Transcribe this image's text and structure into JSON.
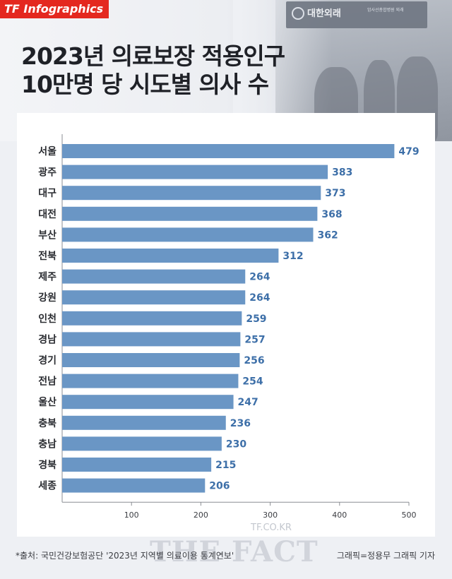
{
  "brand": {
    "badge": "TF Infographics"
  },
  "photo": {
    "sign_text": "대한외래",
    "sign_subtext": "암사선총합병원 외래"
  },
  "title_lines": [
    "2023년 의료보장 적용인구",
    "10만명 당 시도별 의사 수"
  ],
  "chart_data": {
    "type": "bar",
    "orientation": "horizontal",
    "categories": [
      "서울",
      "광주",
      "대구",
      "대전",
      "부산",
      "전북",
      "제주",
      "강원",
      "인천",
      "경남",
      "경기",
      "전남",
      "울산",
      "충북",
      "충남",
      "경북",
      "세종"
    ],
    "values": [
      479,
      383,
      373,
      368,
      362,
      312,
      264,
      264,
      259,
      257,
      256,
      254,
      247,
      236,
      230,
      215,
      206
    ],
    "xlim": [
      0,
      500
    ],
    "xticks": [
      100,
      200,
      300,
      400,
      500
    ],
    "grid": false,
    "title": "",
    "xlabel": "",
    "ylabel": "",
    "bar_color": "#6a96c5",
    "value_label_color": "#3d6fa8"
  },
  "footer": {
    "source": "*출처: 국민건강보험공단 '2023년 지역별 의료이용 통계연보'",
    "credit": "그래픽=정용무 그래픽 기자"
  },
  "watermark": {
    "url": "TF.CO.KR",
    "logo": "THE FACT"
  }
}
